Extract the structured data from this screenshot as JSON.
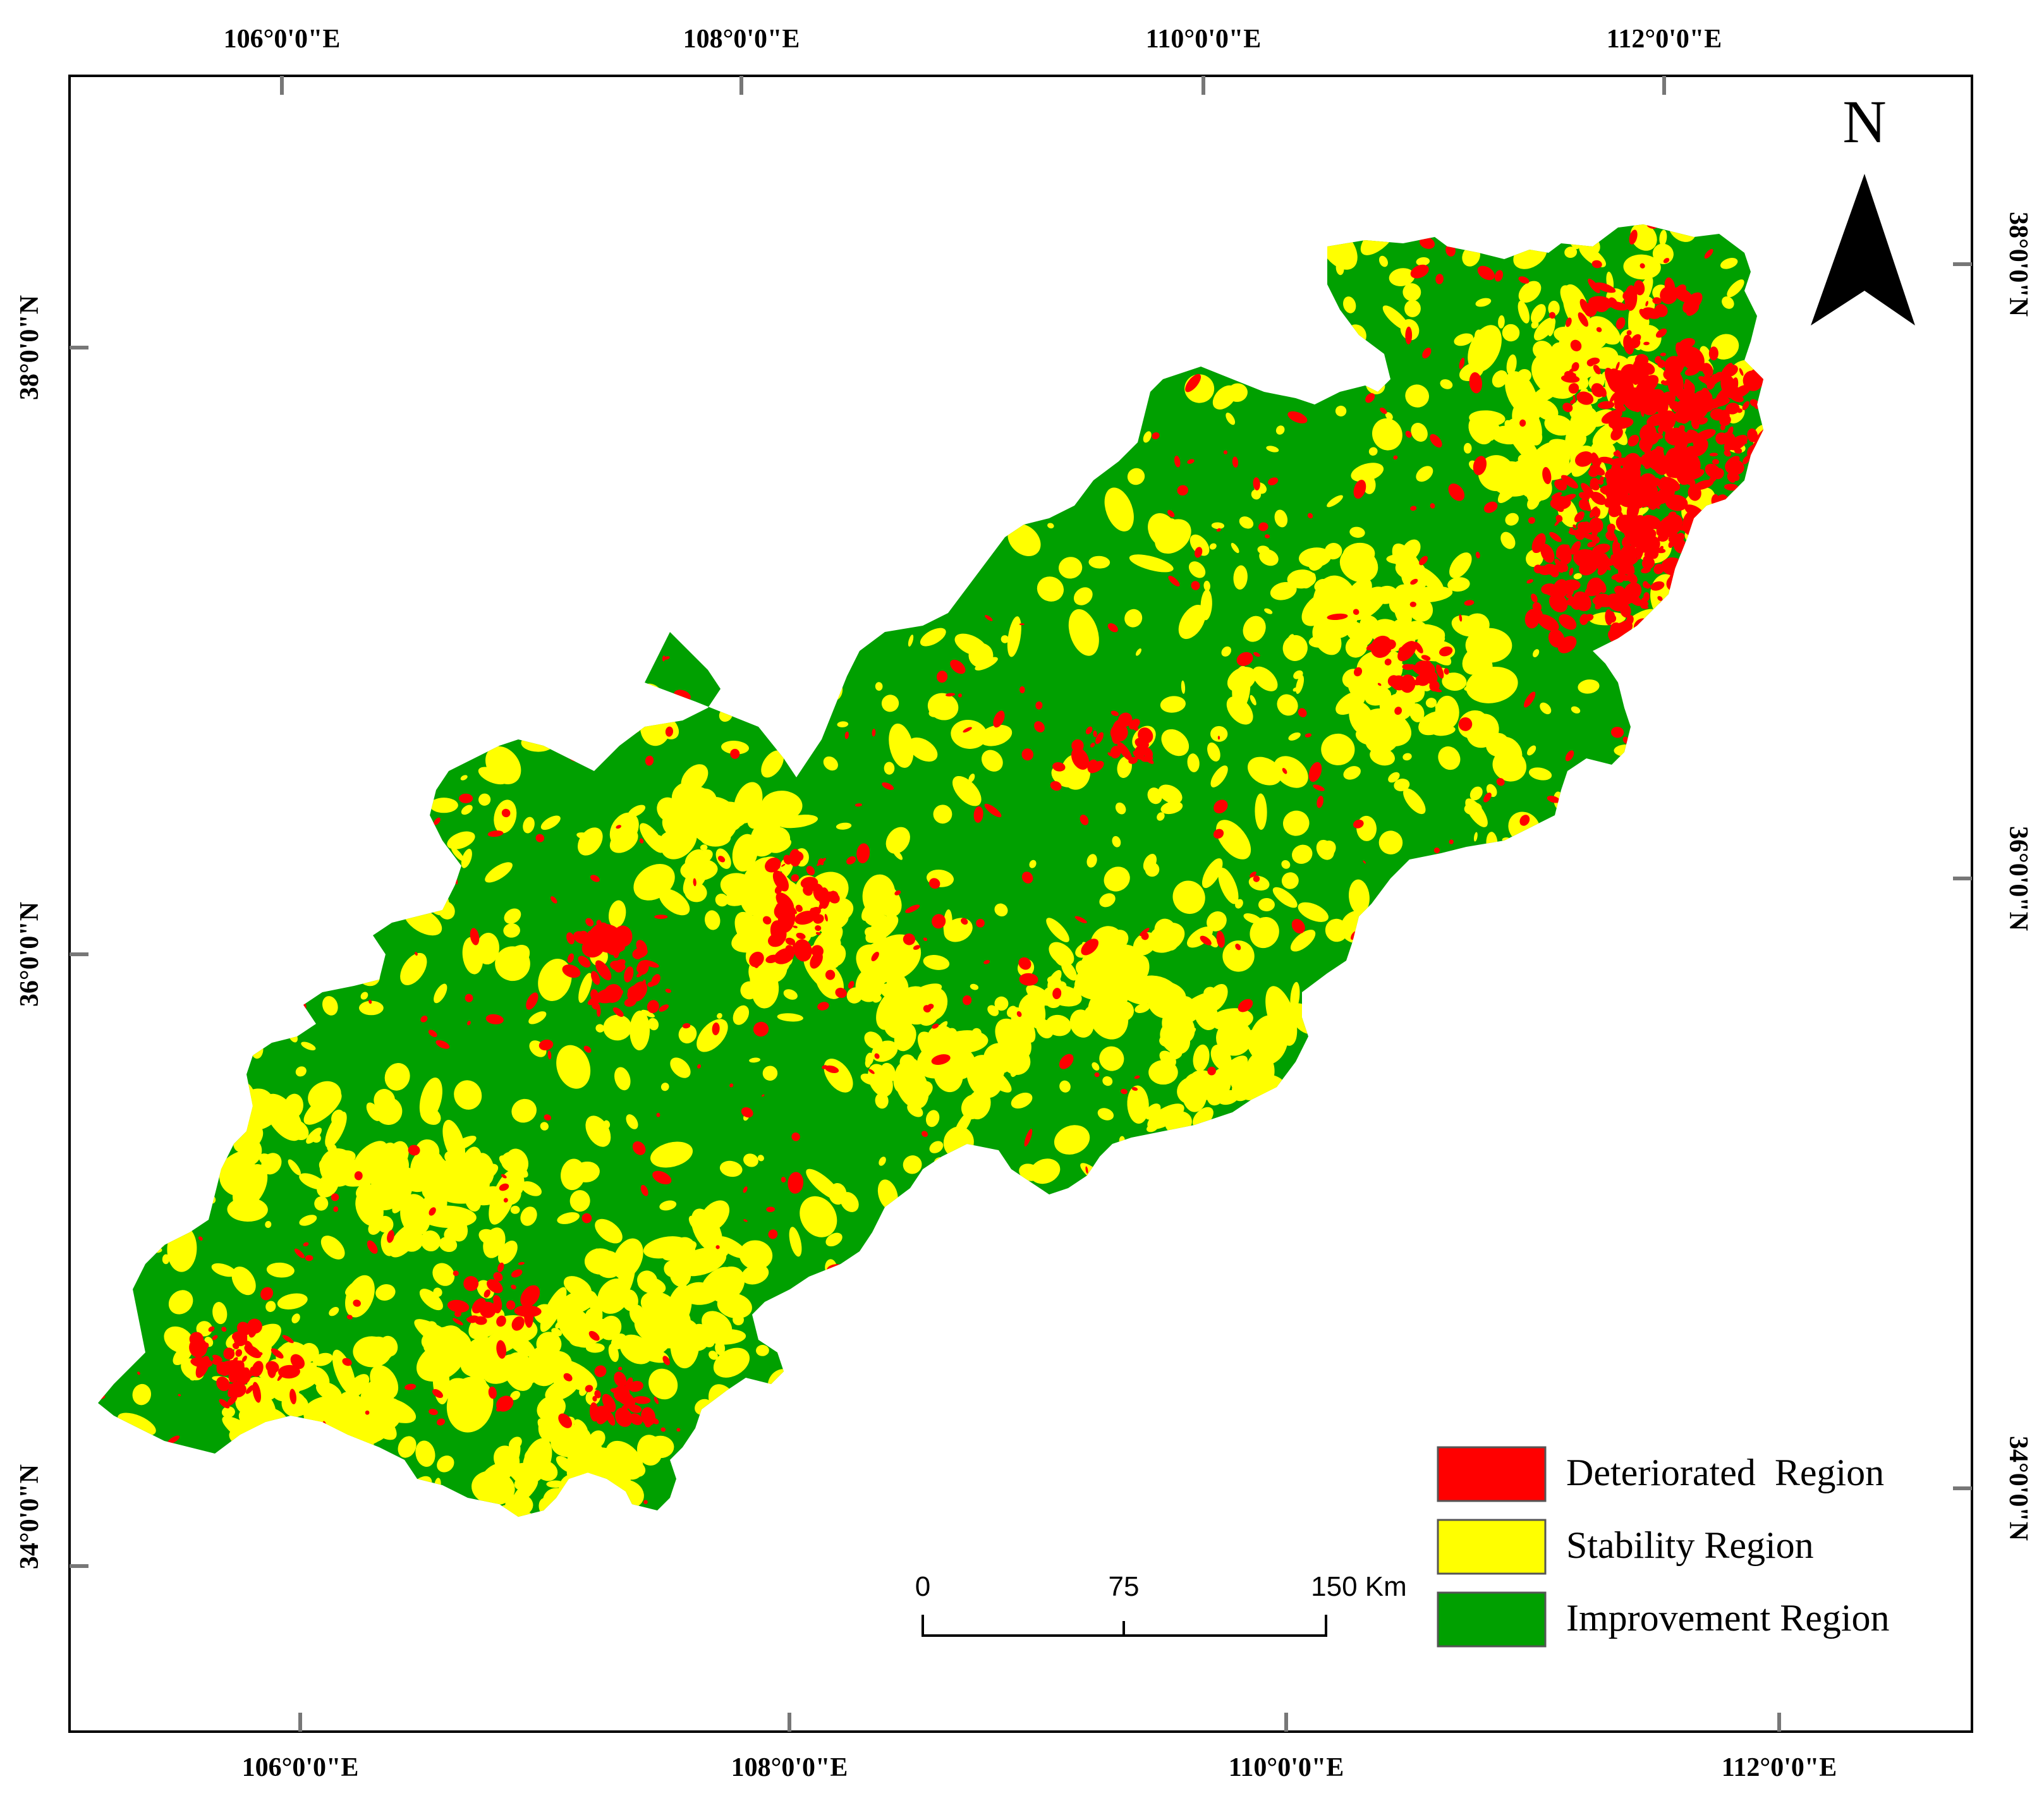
{
  "colors": {
    "deteriorated": "#ff0000",
    "stability": "#ffff00",
    "improvement": "#00a000",
    "frame": "#000000",
    "background": "#ffffff"
  },
  "axes": {
    "top": [
      "106°0'0\"E",
      "108°0'0\"E",
      "110°0'0\"E",
      "112°0'0\"E"
    ],
    "bottom": [
      "106°0'0\"E",
      "108°0'0\"E",
      "110°0'0\"E",
      "112°0'0\"E"
    ],
    "left": [
      "38°0'0\"N",
      "36°0'0\"N",
      "34°0'0\"N"
    ],
    "right": [
      "38°0'0\"N",
      "36°0'0\"N",
      "34°0'0\"N"
    ]
  },
  "north_arrow": {
    "label": "N",
    "icon": "north-arrow-icon"
  },
  "scale_bar": {
    "ticks": [
      "0",
      "75",
      "150 Km"
    ]
  },
  "legend": {
    "items": [
      {
        "label": "Deteriorated  Region",
        "color": "#ff0000"
      },
      {
        "label": "Stability Region",
        "color": "#ffff00"
      },
      {
        "label": "Improvement Region",
        "color": "#00a000"
      }
    ]
  }
}
